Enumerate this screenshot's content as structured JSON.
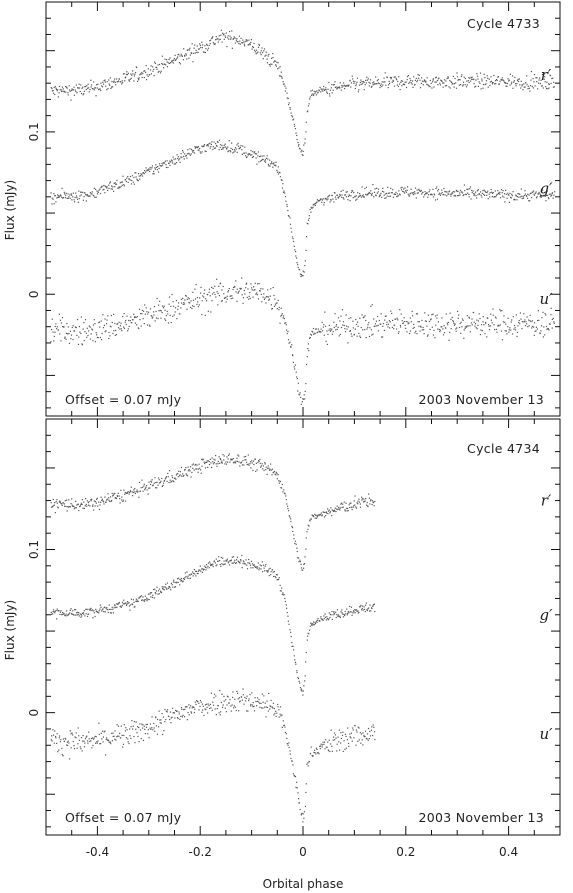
{
  "xlabel": "Orbital phase",
  "colors": {
    "axes": "#111111",
    "points": "#555555"
  },
  "chart_data": [
    {
      "type": "scatter",
      "ylabel": "Flux (mJy)",
      "cycle_label": "Cycle 4733",
      "offset_label": "Offset = 0.07 mJy",
      "date_label": "2003 November 13",
      "xlim": [
        -0.5,
        0.5
      ],
      "ylim": [
        -0.075,
        0.18
      ],
      "x_ticks": [
        "-0.4",
        "-0.2",
        "0",
        "0.2",
        "0.4"
      ],
      "x_tick_values": [
        -0.4,
        -0.2,
        0,
        0.2,
        0.4
      ],
      "y_ticks": [
        "0",
        "0.1"
      ],
      "y_tick_values": [
        0,
        0.1
      ],
      "x_range": [
        -0.49,
        0.49
      ],
      "series": [
        {
          "name": "r′",
          "label_y": 0.135,
          "x": [
            -0.49,
            -0.42,
            -0.33,
            -0.25,
            -0.2,
            -0.16,
            -0.12,
            -0.08,
            -0.05,
            -0.035,
            -0.02,
            -0.01,
            -0.004,
            0.0,
            0.004,
            0.008,
            0.015,
            0.03,
            0.1,
            0.2,
            0.3,
            0.4,
            0.49
          ],
          "y": [
            0.125,
            0.126,
            0.134,
            0.144,
            0.152,
            0.158,
            0.157,
            0.149,
            0.141,
            0.128,
            0.108,
            0.095,
            0.088,
            0.086,
            0.093,
            0.113,
            0.123,
            0.125,
            0.129,
            0.131,
            0.131,
            0.131,
            0.13
          ],
          "noise": 0.0045
        },
        {
          "name": "g′",
          "label_y": 0.065,
          "x": [
            -0.49,
            -0.42,
            -0.33,
            -0.25,
            -0.2,
            -0.16,
            -0.12,
            -0.08,
            -0.05,
            -0.035,
            -0.02,
            -0.01,
            -0.004,
            0.0,
            0.004,
            0.008,
            0.015,
            0.03,
            0.1,
            0.2,
            0.3,
            0.4,
            0.49
          ],
          "y": [
            0.06,
            0.061,
            0.071,
            0.083,
            0.09,
            0.092,
            0.089,
            0.083,
            0.079,
            0.062,
            0.035,
            0.018,
            0.012,
            0.011,
            0.018,
            0.042,
            0.052,
            0.058,
            0.062,
            0.063,
            0.062,
            0.061,
            0.061
          ],
          "noise": 0.0035
        },
        {
          "name": "u′",
          "label_y": -0.003,
          "x": [
            -0.49,
            -0.42,
            -0.33,
            -0.25,
            -0.2,
            -0.16,
            -0.12,
            -0.08,
            -0.05,
            -0.035,
            -0.02,
            -0.01,
            -0.004,
            0.0,
            0.004,
            0.008,
            0.015,
            0.03,
            0.1,
            0.2,
            0.3,
            0.4,
            0.49
          ],
          "y": [
            -0.022,
            -0.023,
            -0.017,
            -0.008,
            -0.003,
            0.0,
            0.002,
            0.001,
            -0.004,
            -0.016,
            -0.038,
            -0.055,
            -0.064,
            -0.066,
            -0.06,
            -0.038,
            -0.025,
            -0.022,
            -0.019,
            -0.018,
            -0.018,
            -0.018,
            -0.018
          ],
          "noise": 0.0085
        }
      ]
    },
    {
      "type": "scatter",
      "ylabel": "Flux (mJy)",
      "cycle_label": "Cycle 4734",
      "offset_label": "Offset = 0.07 mJy",
      "date_label": "2003 November 13",
      "xlim": [
        -0.5,
        0.5
      ],
      "ylim": [
        -0.075,
        0.18
      ],
      "x_ticks": [
        "-0.4",
        "-0.2",
        "0",
        "0.2",
        "0.4"
      ],
      "x_tick_values": [
        -0.4,
        -0.2,
        0,
        0.2,
        0.4
      ],
      "y_ticks": [
        "0",
        "0.1"
      ],
      "y_tick_values": [
        0,
        0.1
      ],
      "x_range": [
        -0.49,
        0.14
      ],
      "series": [
        {
          "name": "r′",
          "label_y": 0.13,
          "x": [
            -0.49,
            -0.42,
            -0.33,
            -0.25,
            -0.2,
            -0.16,
            -0.12,
            -0.08,
            -0.05,
            -0.035,
            -0.02,
            -0.01,
            -0.004,
            0.0,
            0.004,
            0.008,
            0.015,
            0.03,
            0.06,
            0.1,
            0.14
          ],
          "y": [
            0.128,
            0.127,
            0.135,
            0.145,
            0.151,
            0.155,
            0.155,
            0.151,
            0.146,
            0.134,
            0.112,
            0.097,
            0.09,
            0.088,
            0.094,
            0.112,
            0.119,
            0.121,
            0.124,
            0.128,
            0.13
          ],
          "noise": 0.004
        },
        {
          "name": "g′",
          "label_y": 0.06,
          "x": [
            -0.49,
            -0.42,
            -0.33,
            -0.25,
            -0.2,
            -0.16,
            -0.12,
            -0.08,
            -0.05,
            -0.035,
            -0.02,
            -0.01,
            -0.004,
            0.0,
            0.004,
            0.008,
            0.015,
            0.03,
            0.06,
            0.1,
            0.14
          ],
          "y": [
            0.061,
            0.061,
            0.067,
            0.079,
            0.088,
            0.093,
            0.093,
            0.089,
            0.084,
            0.07,
            0.04,
            0.022,
            0.014,
            0.012,
            0.02,
            0.045,
            0.054,
            0.057,
            0.06,
            0.063,
            0.065
          ],
          "noise": 0.003
        },
        {
          "name": "u′",
          "label_y": -0.013,
          "x": [
            -0.49,
            -0.42,
            -0.33,
            -0.25,
            -0.2,
            -0.16,
            -0.12,
            -0.08,
            -0.05,
            -0.035,
            -0.02,
            -0.01,
            -0.004,
            0.0,
            0.004,
            0.008,
            0.015,
            0.03,
            0.06,
            0.1,
            0.14
          ],
          "y": [
            -0.017,
            -0.018,
            -0.013,
            -0.002,
            0.004,
            0.007,
            0.008,
            0.006,
            0.002,
            -0.01,
            -0.032,
            -0.05,
            -0.062,
            -0.066,
            -0.058,
            -0.035,
            -0.025,
            -0.022,
            -0.018,
            -0.014,
            -0.012
          ],
          "noise": 0.0075
        }
      ]
    }
  ]
}
